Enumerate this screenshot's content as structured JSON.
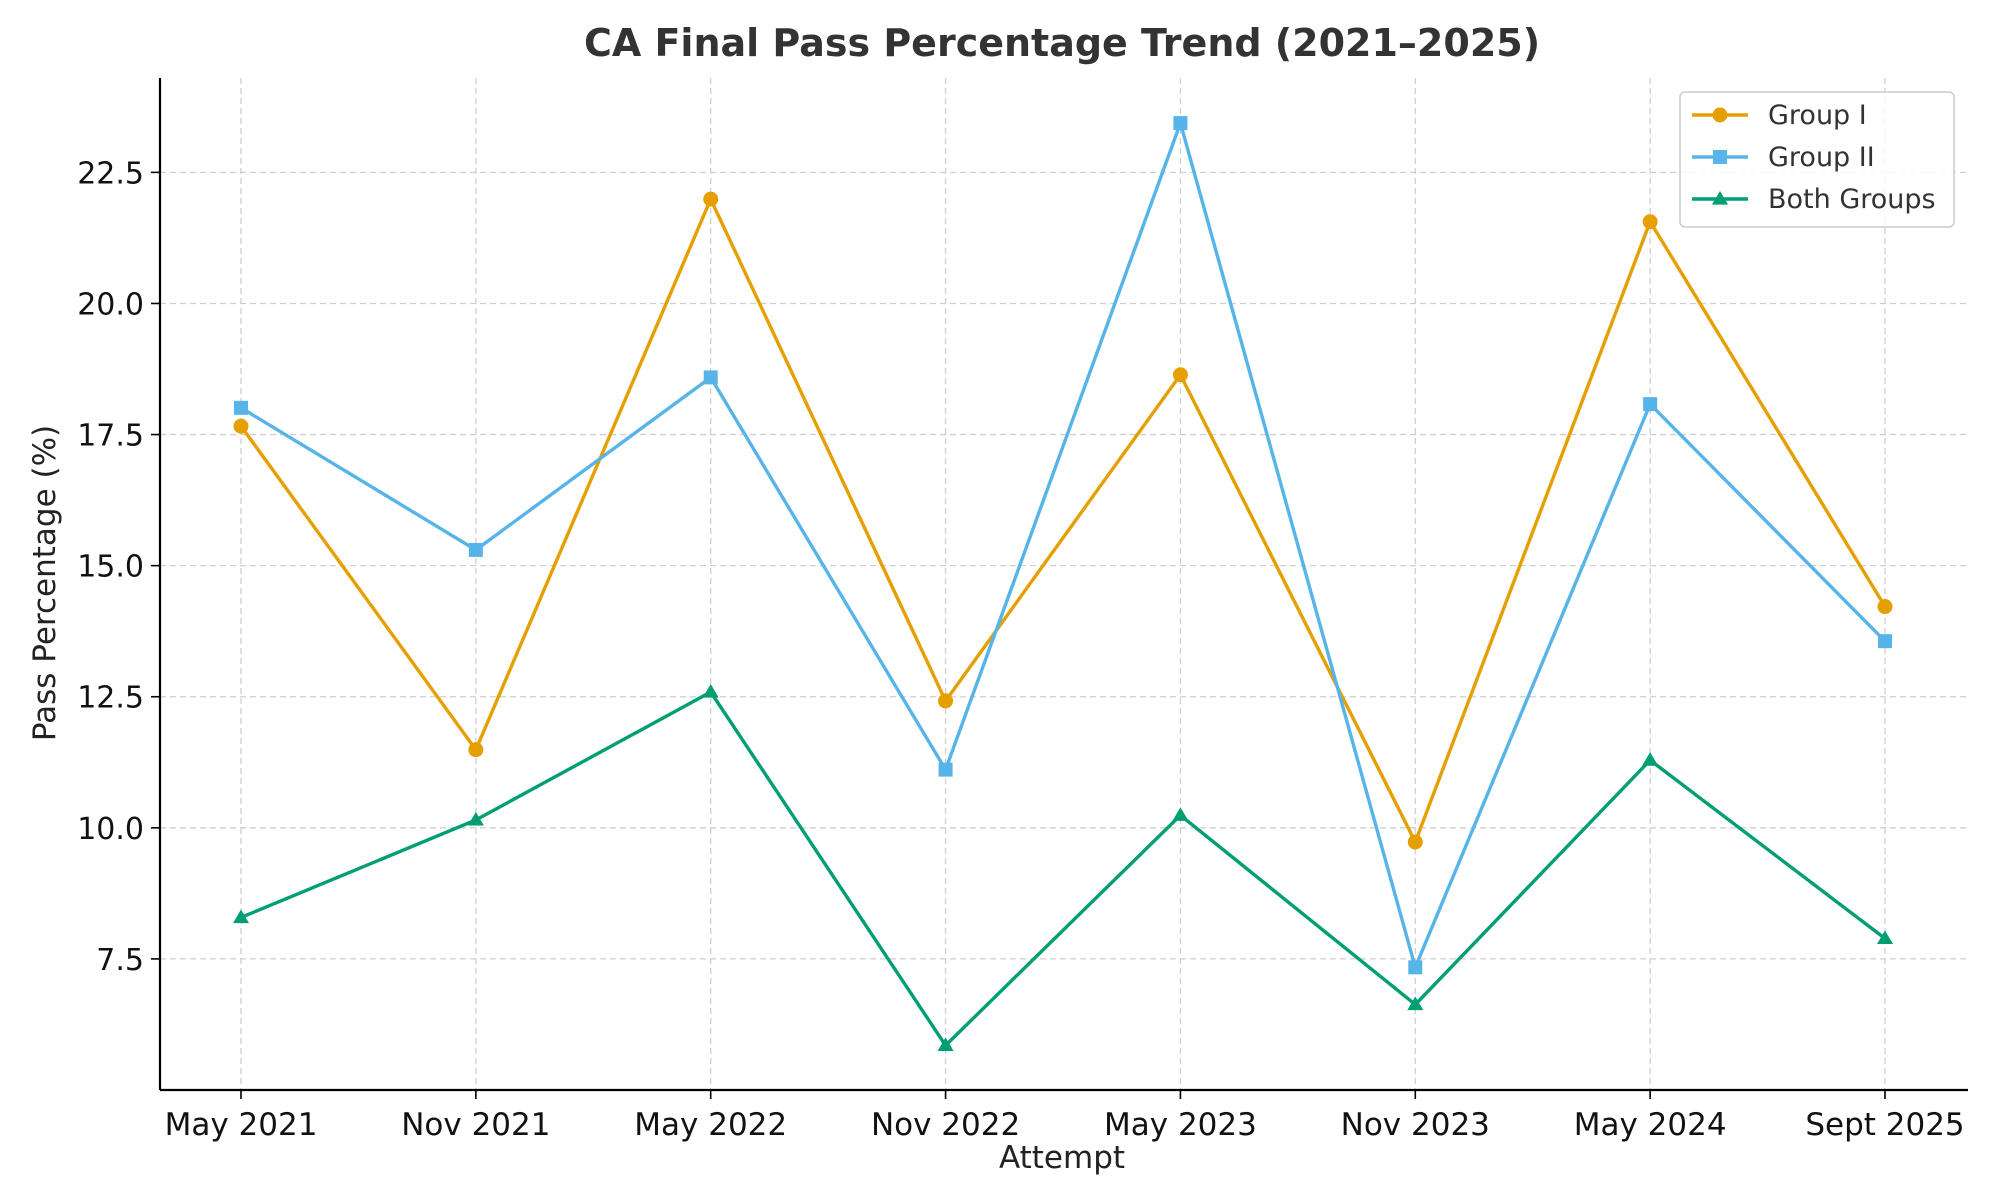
{
  "chart_data": {
    "type": "line",
    "title": "CA Final Pass Percentage Trend (2021–2025)",
    "xlabel": "Attempt",
    "ylabel": "Pass Percentage (%)",
    "categories": [
      "May 2021",
      "Nov 2021",
      "May 2022",
      "Nov 2022",
      "May 2023",
      "Nov 2023",
      "May 2024",
      "Sept 2025"
    ],
    "ylim": [
      5.0,
      24.3
    ],
    "yticks": [
      7.5,
      10.0,
      12.5,
      15.0,
      17.5,
      20.0,
      22.5
    ],
    "grid": true,
    "grid_style": "dashed",
    "legend_position": "top-right",
    "series": [
      {
        "name": "Group I",
        "color": "#E69F00",
        "marker": "circle",
        "values": [
          17.66,
          11.49,
          21.99,
          12.42,
          18.64,
          9.73,
          21.56,
          14.22
        ]
      },
      {
        "name": "Group II",
        "color": "#56B4E9",
        "marker": "square",
        "values": [
          18.01,
          15.3,
          18.59,
          11.11,
          23.44,
          7.34,
          18.08,
          13.56
        ]
      },
      {
        "name": "Both Groups",
        "color": "#009E73",
        "marker": "triangle",
        "values": [
          8.29,
          10.15,
          12.59,
          5.85,
          10.24,
          6.63,
          11.29,
          7.89
        ]
      }
    ]
  }
}
